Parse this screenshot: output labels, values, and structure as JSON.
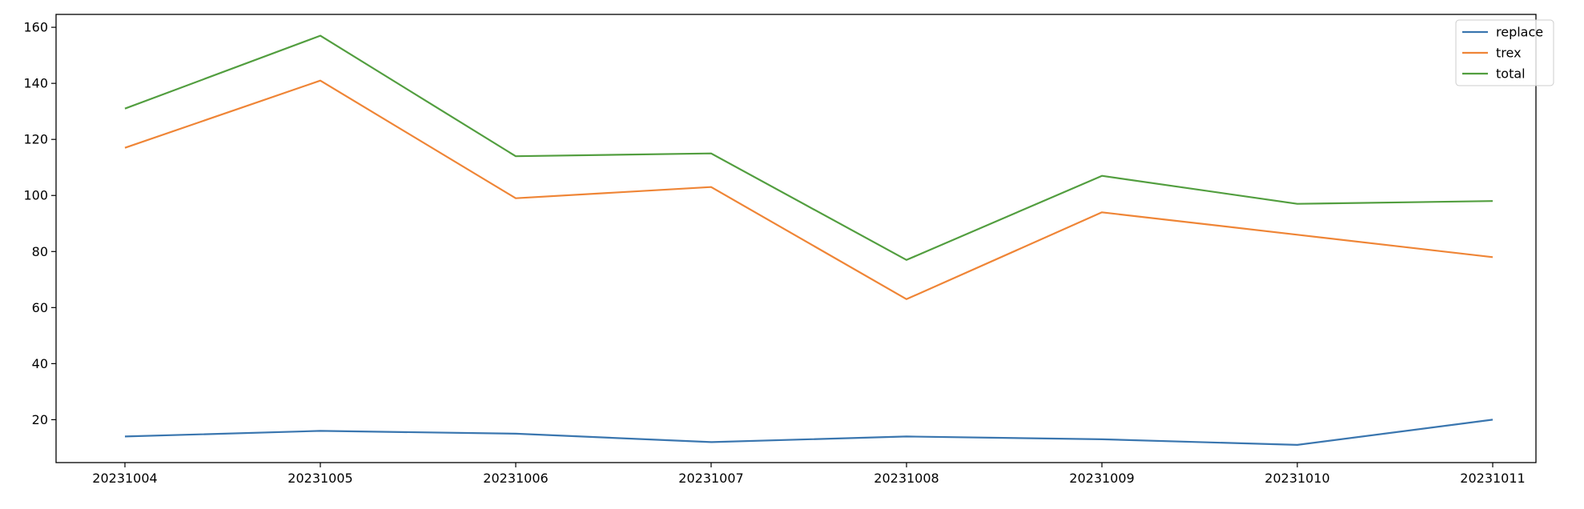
{
  "chart_data": {
    "type": "line",
    "title": "",
    "xlabel": "",
    "ylabel": "",
    "x": [
      "20231004",
      "20231005",
      "20231006",
      "20231007",
      "20231008",
      "20231009",
      "20231010",
      "20231011"
    ],
    "ylim": [
      4.7,
      164.6
    ],
    "yticks": [
      "20",
      "40",
      "60",
      "80",
      "100",
      "120",
      "140",
      "160"
    ],
    "grid": false,
    "legend_position": "top-right",
    "series": [
      {
        "name": "replace",
        "color": "#3a76af",
        "values": [
          14,
          16,
          15,
          12,
          14,
          13,
          11,
          20
        ]
      },
      {
        "name": "trex",
        "color": "#ef8536",
        "values": [
          117,
          141,
          99,
          103,
          63,
          94,
          86,
          78
        ]
      },
      {
        "name": "total",
        "color": "#529e3f",
        "values": [
          131,
          157,
          114,
          115,
          77,
          107,
          97,
          98
        ]
      }
    ]
  }
}
